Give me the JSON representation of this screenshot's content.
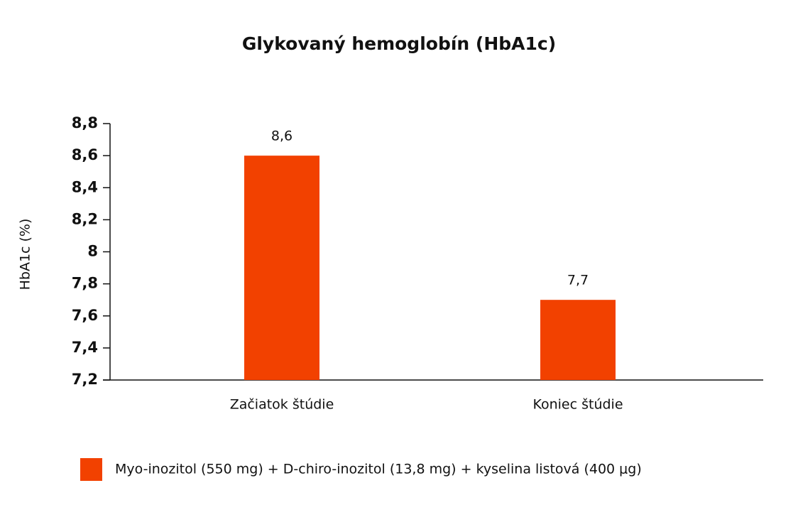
{
  "chart_data": {
    "type": "bar",
    "title": "Glykovaný hemoglobín (HbA1c)",
    "y_label": "HbA1c (%)",
    "categories": [
      "Začiatok štúdie",
      "Koniec štúdie"
    ],
    "series": [
      {
        "name": "Myo-inozitol (550 mg) + D-chiro-inozitol (13,8 mg) + kyselina listová (400 μg)",
        "color": "#f24100",
        "values": [
          8.6,
          7.7
        ],
        "value_labels": [
          "8,6",
          "7,7"
        ]
      }
    ],
    "ylim": [
      7.2,
      8.8
    ],
    "yticks": [
      {
        "value": 7.2,
        "label": "7,2"
      },
      {
        "value": 7.4,
        "label": "7,4"
      },
      {
        "value": 7.6,
        "label": "7,6"
      },
      {
        "value": 7.8,
        "label": "7,8"
      },
      8,
      {
        "value": 8.2,
        "label": "8,2"
      },
      {
        "value": 8.4,
        "label": "8,4"
      },
      {
        "value": 8.6,
        "label": "8,6"
      },
      {
        "value": 8.8,
        "label": "8,8"
      }
    ],
    "grid": false
  }
}
